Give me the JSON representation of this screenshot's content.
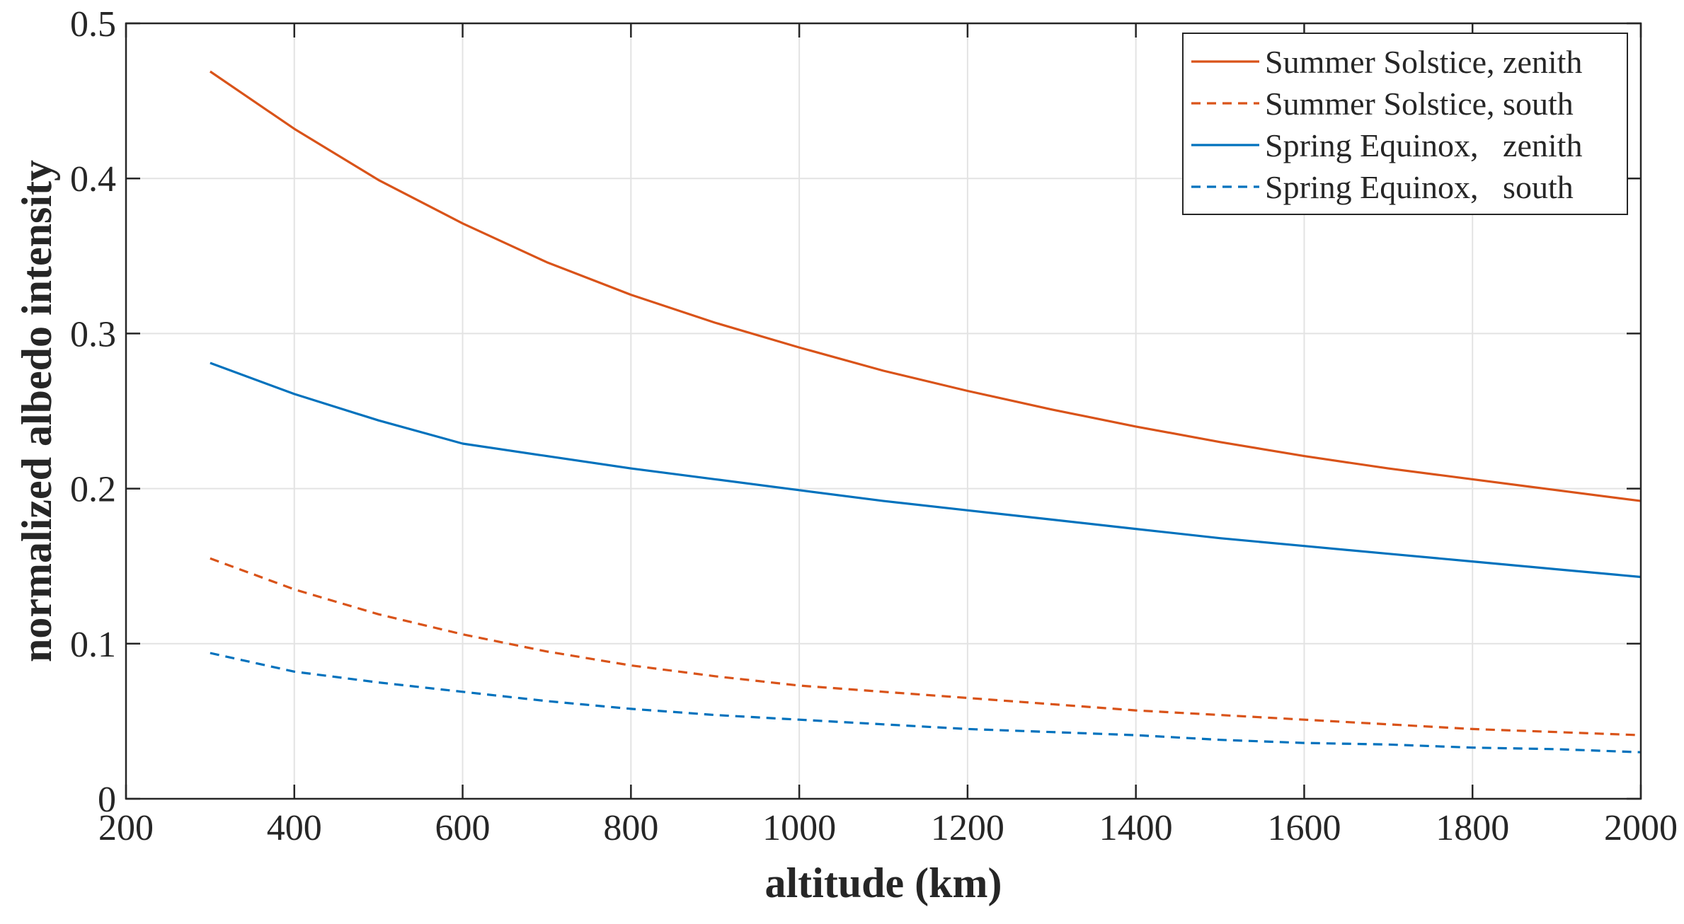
{
  "chart_data": {
    "type": "line",
    "title": "",
    "xlabel": "altitude (km)",
    "ylabel": "normalized albedo intensity",
    "xlim": [
      200,
      2000
    ],
    "ylim": [
      0,
      0.5
    ],
    "xticks": [
      200,
      400,
      600,
      800,
      1000,
      1200,
      1400,
      1600,
      1800,
      2000
    ],
    "yticks": [
      0,
      0.1,
      0.2,
      0.3,
      0.4,
      0.5
    ],
    "xtick_labels": [
      "200",
      "400",
      "600",
      "800",
      "1000",
      "1200",
      "1400",
      "1600",
      "1800",
      "2000"
    ],
    "ytick_labels": [
      "0",
      "0.1",
      "0.2",
      "0.3",
      "0.4",
      "0.5"
    ],
    "grid": true,
    "legend_location": "top-right",
    "x": [
      300,
      400,
      500,
      600,
      700,
      800,
      900,
      1000,
      1100,
      1200,
      1300,
      1400,
      1500,
      1600,
      1700,
      1800,
      1900,
      2000
    ],
    "series": [
      {
        "name": "Summer Solstice, zenith",
        "color": "#d95319",
        "style": "solid",
        "values": [
          0.469,
          0.432,
          0.399,
          0.371,
          0.346,
          0.325,
          0.307,
          0.291,
          0.276,
          0.263,
          0.251,
          0.24,
          0.23,
          0.221,
          0.213,
          0.206,
          0.199,
          0.192
        ]
      },
      {
        "name": "Summer Solstice, south",
        "color": "#d95319",
        "style": "dashed",
        "values": [
          0.155,
          0.135,
          0.119,
          0.106,
          0.095,
          0.086,
          0.079,
          0.073,
          0.069,
          0.065,
          0.061,
          0.057,
          0.054,
          0.051,
          0.048,
          0.045,
          0.043,
          0.041
        ]
      },
      {
        "name": "Spring Equinox,   zenith",
        "color": "#0072bd",
        "style": "solid",
        "values": [
          0.281,
          0.261,
          0.244,
          0.229,
          0.221,
          0.213,
          0.206,
          0.199,
          0.192,
          0.186,
          0.18,
          0.174,
          0.168,
          0.163,
          0.158,
          0.153,
          0.148,
          0.143
        ]
      },
      {
        "name": "Spring Equinox,   south",
        "color": "#0072bd",
        "style": "dashed",
        "values": [
          0.094,
          0.082,
          0.075,
          0.069,
          0.063,
          0.058,
          0.054,
          0.051,
          0.048,
          0.045,
          0.043,
          0.041,
          0.038,
          0.036,
          0.035,
          0.033,
          0.032,
          0.03
        ]
      }
    ]
  }
}
